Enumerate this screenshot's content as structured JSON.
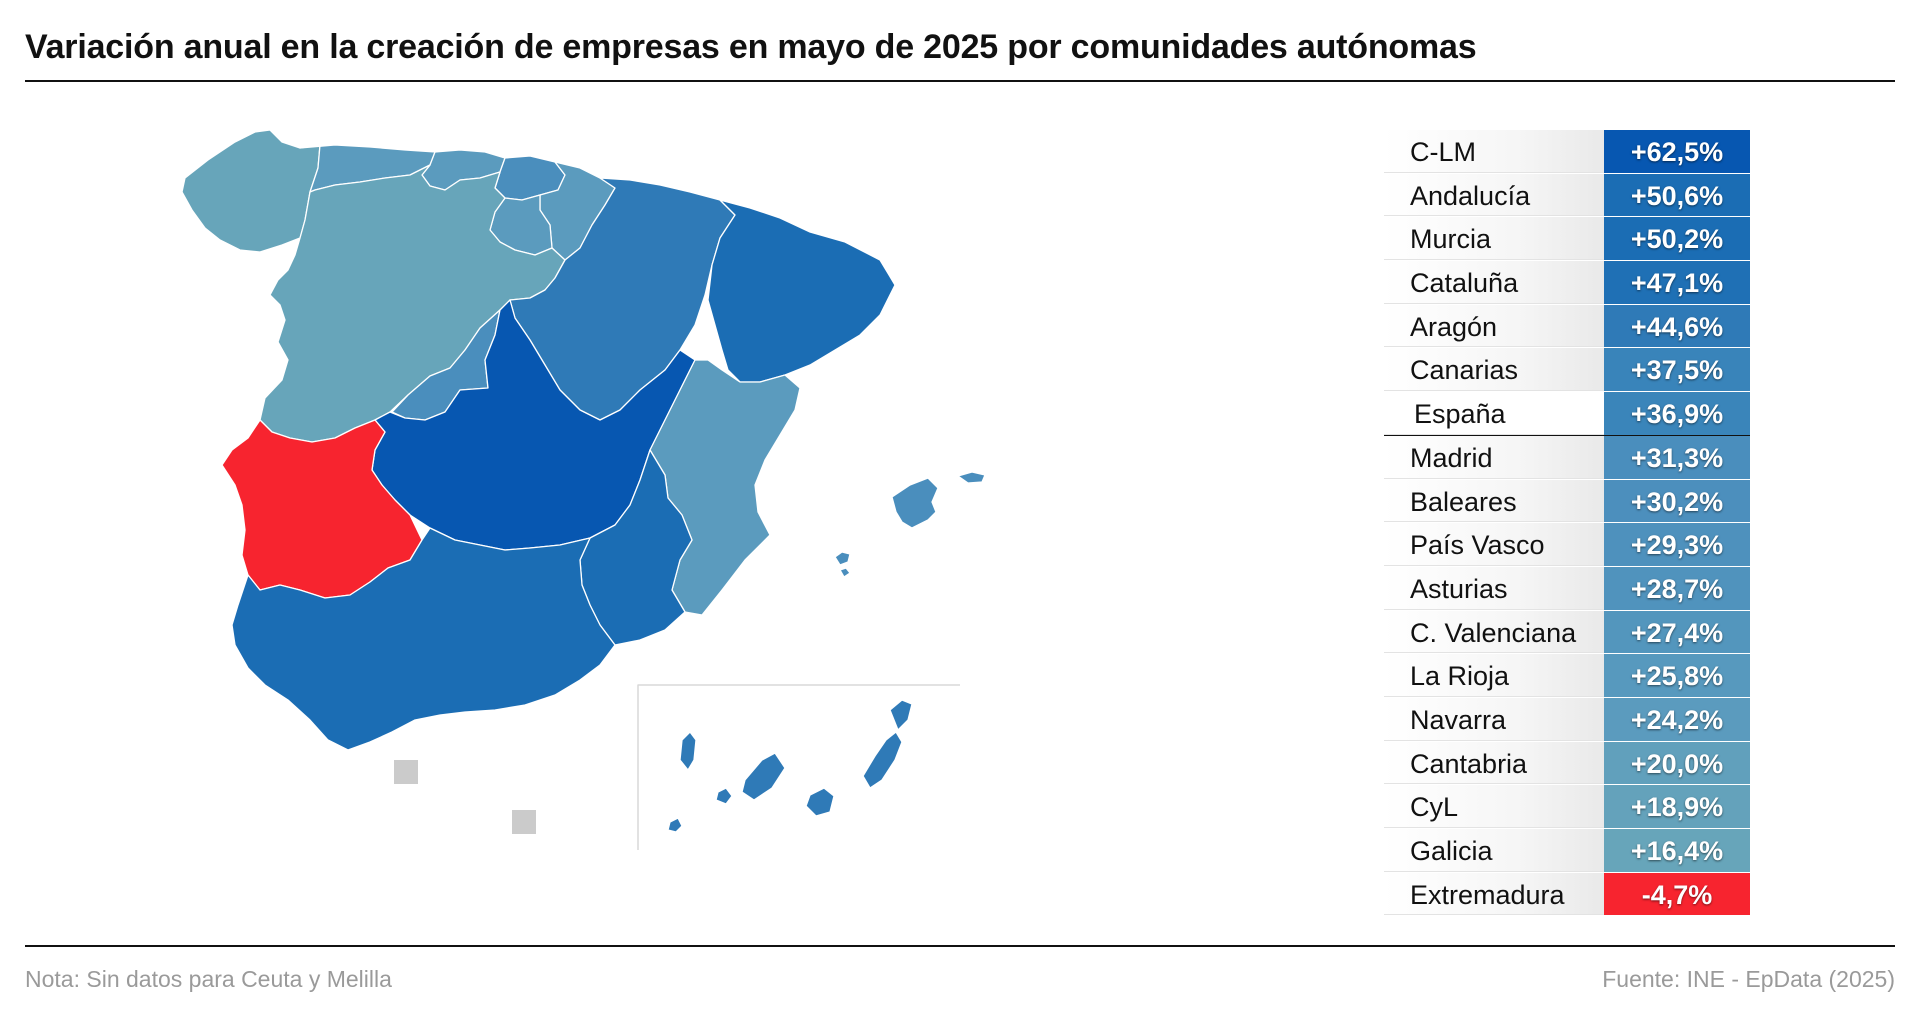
{
  "title": "Variación anual en la creación de empresas en mayo de 2025 por comunidades autónomas",
  "colors": {
    "very_high": "#0757b1",
    "high": "#1b6db4",
    "mid_high": "#2f7ab7",
    "mid": "#4a8ebd",
    "mid_low": "#5b9bbe",
    "low": "#67a5ba",
    "negative": "#f7242f",
    "no_data": "#cbcbcb"
  },
  "map": {
    "regions": [
      {
        "id": "galicia",
        "name": "Galicia",
        "color": "#67a5ba"
      },
      {
        "id": "asturias",
        "name": "Asturias",
        "color": "#5b9bbe"
      },
      {
        "id": "cantabria",
        "name": "Cantabria",
        "color": "#5b9bbe"
      },
      {
        "id": "pais-vasco",
        "name": "País Vasco",
        "color": "#4a8ebd"
      },
      {
        "id": "navarra",
        "name": "Navarra",
        "color": "#5b9bbe"
      },
      {
        "id": "la-rioja",
        "name": "La Rioja",
        "color": "#5b9bbe"
      },
      {
        "id": "castilla-y-leon",
        "name": "CyL",
        "color": "#67a5ba"
      },
      {
        "id": "aragon",
        "name": "Aragón",
        "color": "#2f7ab7"
      },
      {
        "id": "cataluna",
        "name": "Cataluña",
        "color": "#1b6db4"
      },
      {
        "id": "madrid",
        "name": "Madrid",
        "color": "#4a8ebd"
      },
      {
        "id": "castilla-la-mancha",
        "name": "C-LM",
        "color": "#0757b1"
      },
      {
        "id": "extremadura",
        "name": "Extremadura",
        "color": "#f7242f"
      },
      {
        "id": "c-valenciana",
        "name": "C. Valenciana",
        "color": "#5b9bbe"
      },
      {
        "id": "murcia",
        "name": "Murcia",
        "color": "#1b6db4"
      },
      {
        "id": "andalucia",
        "name": "Andalucía",
        "color": "#1b6db4"
      },
      {
        "id": "baleares",
        "name": "Baleares",
        "color": "#4a8ebd"
      },
      {
        "id": "canarias",
        "name": "Canarias",
        "color": "#2f7ab7"
      },
      {
        "id": "ceuta",
        "name": "Ceuta",
        "color": "#cbcbcb"
      },
      {
        "id": "melilla",
        "name": "Melilla",
        "color": "#cbcbcb"
      }
    ]
  },
  "ranking": [
    {
      "name": "C-LM",
      "value": "+62,5%",
      "color": "#0757b1"
    },
    {
      "name": "Andalucía",
      "value": "+50,6%",
      "color": "#1b6db4"
    },
    {
      "name": "Murcia",
      "value": "+50,2%",
      "color": "#1b6db4"
    },
    {
      "name": "Cataluña",
      "value": "+47,1%",
      "color": "#1f70b5"
    },
    {
      "name": "Aragón",
      "value": "+44,6%",
      "color": "#2f7ab7"
    },
    {
      "name": "Canarias",
      "value": "+37,5%",
      "color": "#3984ba"
    },
    {
      "name": "España",
      "value": "+36,9%",
      "color": "#3a85ba",
      "highlight": true
    },
    {
      "name": "Madrid",
      "value": "+31,3%",
      "color": "#4a8ebd"
    },
    {
      "name": "Baleares",
      "value": "+30,2%",
      "color": "#4c8fbd"
    },
    {
      "name": "País Vasco",
      "value": "+29,3%",
      "color": "#4e91bd"
    },
    {
      "name": "Asturias",
      "value": "+28,7%",
      "color": "#5093bd"
    },
    {
      "name": "C. Valenciana",
      "value": "+27,4%",
      "color": "#5396bd"
    },
    {
      "name": "La Rioja",
      "value": "+25,8%",
      "color": "#5799be"
    },
    {
      "name": "Navarra",
      "value": "+24,2%",
      "color": "#5b9bbe"
    },
    {
      "name": "Cantabria",
      "value": "+20,0%",
      "color": "#61a0bc"
    },
    {
      "name": "CyL",
      "value": "+18,9%",
      "color": "#64a2bb"
    },
    {
      "name": "Galicia",
      "value": "+16,4%",
      "color": "#67a5ba"
    },
    {
      "name": "Extremadura",
      "value": "-4,7%",
      "color": "#f7242f"
    }
  ],
  "note": "Nota: Sin datos para Ceuta y Melilla",
  "source": "Fuente: INE - EpData (2025)"
}
